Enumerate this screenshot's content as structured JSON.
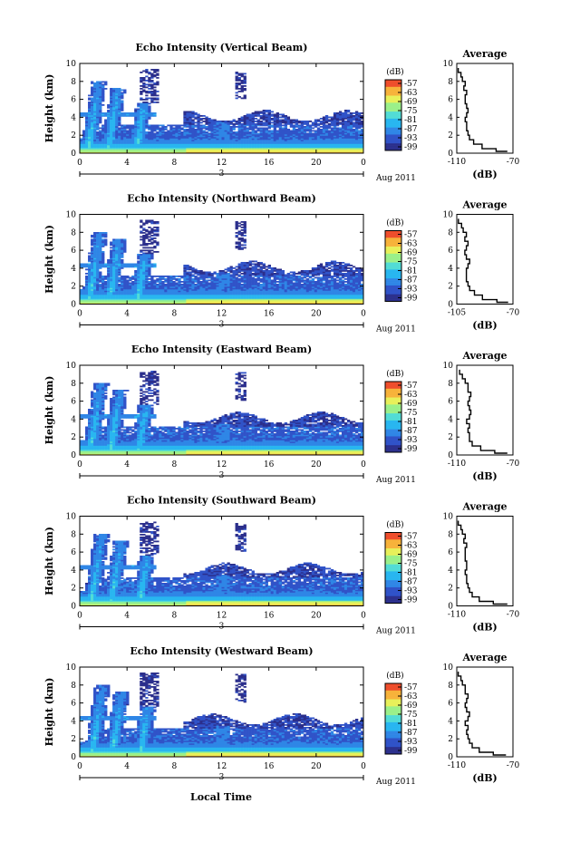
{
  "figure": {
    "x_label": "Local Time",
    "date_label": "Aug 2011",
    "day_label": "3"
  },
  "colors": {
    "palette": [
      "#2b2f8c",
      "#3053c8",
      "#2f86e6",
      "#29b6f0",
      "#52dcd6",
      "#9bf08a",
      "#e8f05a",
      "#f7b23a",
      "#ef4e2c"
    ]
  },
  "chart_data": [
    {
      "type": "heatmap",
      "title": "Echo Intensity (Vertical Beam)",
      "ylabel": "Height (km)",
      "x_ticks": [
        "0",
        "4",
        "8",
        "12",
        "16",
        "20",
        "0"
      ],
      "y_ticks": [
        "0",
        "2",
        "4",
        "6",
        "8",
        "10"
      ],
      "xlim": [
        0,
        24
      ],
      "ylim": [
        0,
        10
      ],
      "colorbar": {
        "unit": "(dB)",
        "ticks": [
          "-57",
          "-63",
          "-69",
          "-75",
          "-81",
          "-87",
          "-93",
          "-99"
        ]
      },
      "profile": {
        "title": "Average",
        "xlabel": "(dB)",
        "x_ticks": [
          "-110",
          "-70"
        ],
        "y_ticks": [
          "0",
          "2",
          "4",
          "6",
          "8",
          "10"
        ],
        "xlim": [
          -110,
          -70
        ],
        "heights": [
          0.2,
          0.5,
          1,
          1.5,
          2,
          2.5,
          3,
          3.5,
          4,
          4.5,
          5,
          5.5,
          6,
          6.5,
          7,
          7.5,
          8,
          8.5,
          9,
          9.5
        ],
        "values": [
          -74,
          -82,
          -92,
          -98,
          -101,
          -102,
          -103,
          -103,
          -104,
          -103,
          -102,
          -103,
          -104,
          -104,
          -103,
          -105,
          -104,
          -106,
          -107,
          -109
        ]
      }
    },
    {
      "type": "heatmap",
      "title": "Echo Intensity (Northward Beam)",
      "ylabel": "Height (km)",
      "x_ticks": [
        "0",
        "4",
        "8",
        "12",
        "16",
        "20",
        "0"
      ],
      "y_ticks": [
        "0",
        "2",
        "4",
        "6",
        "8",
        "10"
      ],
      "xlim": [
        0,
        24
      ],
      "ylim": [
        0,
        10
      ],
      "colorbar": {
        "unit": "(dB)",
        "ticks": [
          "-57",
          "-63",
          "-69",
          "-75",
          "-81",
          "-87",
          "-93",
          "-99"
        ]
      },
      "profile": {
        "title": "Average",
        "xlabel": "(dB)",
        "x_ticks": [
          "-105",
          "-70"
        ],
        "y_ticks": [
          "0",
          "2",
          "4",
          "6",
          "8",
          "10"
        ],
        "xlim": [
          -105,
          -70
        ],
        "heights": [
          0.2,
          0.5,
          1,
          1.5,
          2,
          2.5,
          3,
          3.5,
          4,
          4.5,
          5,
          5.5,
          6,
          6.5,
          7,
          7.5,
          8,
          8.5,
          9,
          9.5
        ],
        "values": [
          -73,
          -80,
          -89,
          -94,
          -97,
          -98,
          -99,
          -99,
          -99,
          -98,
          -97,
          -99,
          -100,
          -99,
          -98,
          -100,
          -99,
          -101,
          -102,
          -104
        ]
      }
    },
    {
      "type": "heatmap",
      "title": "Echo Intensity (Eastward Beam)",
      "ylabel": "Height (km)",
      "x_ticks": [
        "0",
        "4",
        "8",
        "12",
        "16",
        "20",
        "0"
      ],
      "y_ticks": [
        "0",
        "2",
        "4",
        "6",
        "8",
        "10"
      ],
      "xlim": [
        0,
        24
      ],
      "ylim": [
        0,
        10
      ],
      "colorbar": {
        "unit": "(dB)",
        "ticks": [
          "-57",
          "-63",
          "-69",
          "-75",
          "-81",
          "-87",
          "-93",
          "-99"
        ]
      },
      "profile": {
        "title": "Average",
        "xlabel": "(dB)",
        "x_ticks": [
          "-110",
          "-70"
        ],
        "y_ticks": [
          "0",
          "2",
          "4",
          "6",
          "8",
          "10"
        ],
        "xlim": [
          -110,
          -70
        ],
        "heights": [
          0.2,
          0.5,
          1,
          1.5,
          2,
          2.5,
          3,
          3.5,
          4,
          4.5,
          5,
          5.5,
          6,
          6.5,
          7,
          7.5,
          8,
          8.5,
          9,
          9.5
        ],
        "values": [
          -74,
          -83,
          -93,
          -99,
          -101,
          -101,
          -102,
          -101,
          -103,
          -101,
          -100,
          -101,
          -102,
          -101,
          -100,
          -102,
          -102,
          -104,
          -106,
          -108
        ]
      }
    },
    {
      "type": "heatmap",
      "title": "Echo Intensity (Southward Beam)",
      "ylabel": "Height (km)",
      "x_ticks": [
        "0",
        "4",
        "8",
        "12",
        "16",
        "20",
        "0"
      ],
      "y_ticks": [
        "0",
        "2",
        "4",
        "6",
        "8",
        "10"
      ],
      "xlim": [
        0,
        24
      ],
      "ylim": [
        0,
        10
      ],
      "colorbar": {
        "unit": "(dB)",
        "ticks": [
          "-57",
          "-63",
          "-69",
          "-75",
          "-81",
          "-87",
          "-93",
          "-99"
        ]
      },
      "profile": {
        "title": "Average",
        "xlabel": "(dB)",
        "x_ticks": [
          "-110",
          "-70"
        ],
        "y_ticks": [
          "0",
          "2",
          "4",
          "6",
          "8",
          "10"
        ],
        "xlim": [
          -110,
          -70
        ],
        "heights": [
          0.2,
          0.5,
          1,
          1.5,
          2,
          2.5,
          3,
          3.5,
          4,
          4.5,
          5,
          5.5,
          6,
          6.5,
          7,
          7.5,
          8,
          8.5,
          9,
          9.5
        ],
        "values": [
          -74,
          -84,
          -94,
          -99,
          -101,
          -102,
          -103,
          -103,
          -104,
          -103,
          -103,
          -104,
          -104,
          -104,
          -103,
          -105,
          -104,
          -106,
          -107,
          -109
        ]
      }
    },
    {
      "type": "heatmap",
      "title": "Echo Intensity (Westward Beam)",
      "ylabel": "Height (km)",
      "x_ticks": [
        "0",
        "4",
        "8",
        "12",
        "16",
        "20",
        "0"
      ],
      "y_ticks": [
        "0",
        "2",
        "4",
        "6",
        "8",
        "10"
      ],
      "xlim": [
        0,
        24
      ],
      "ylim": [
        0,
        10
      ],
      "colorbar": {
        "unit": "(dB)",
        "ticks": [
          "-57",
          "-63",
          "-69",
          "-75",
          "-81",
          "-87",
          "-93",
          "-99"
        ]
      },
      "profile": {
        "title": "Average",
        "xlabel": "(dB)",
        "x_ticks": [
          "-110",
          "-70"
        ],
        "y_ticks": [
          "0",
          "2",
          "4",
          "6",
          "8",
          "10"
        ],
        "xlim": [
          -110,
          -70
        ],
        "heights": [
          0.2,
          0.5,
          1,
          1.5,
          2,
          2.5,
          3,
          3.5,
          4,
          4.5,
          5,
          5.5,
          6,
          6.5,
          7,
          7.5,
          8,
          8.5,
          9,
          9.5
        ],
        "values": [
          -75,
          -84,
          -94,
          -99,
          -101,
          -102,
          -103,
          -102,
          -104,
          -102,
          -101,
          -103,
          -104,
          -103,
          -102,
          -104,
          -104,
          -106,
          -107,
          -109
        ]
      }
    }
  ]
}
